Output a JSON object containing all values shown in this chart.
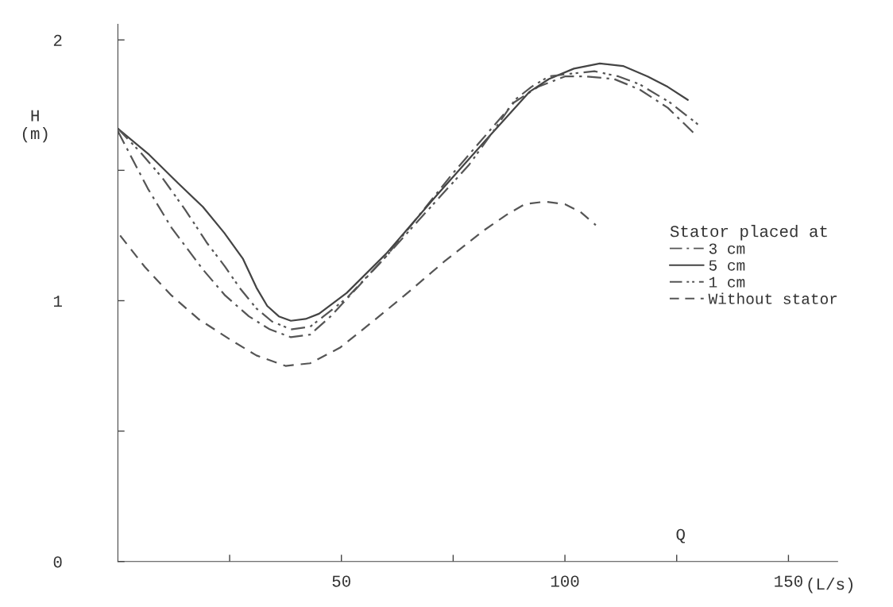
{
  "chart_data": {
    "type": "line",
    "xlabel": "(L/s)",
    "ylabel": "H\n(m)",
    "legend_title": "Stator placed at",
    "annotations": [
      "Q"
    ],
    "xlim": [
      0,
      161
    ],
    "ylim": [
      0,
      2.06
    ],
    "xticks": [
      {
        "value": 25,
        "label": null
      },
      50,
      {
        "value": 75,
        "label": null
      },
      100,
      {
        "value": 125,
        "label": null
      },
      150
    ],
    "yticks": [
      0,
      {
        "value": 0.5,
        "label": null
      },
      1,
      {
        "value": 1.5,
        "label": null
      },
      2
    ],
    "grid": false,
    "legend": "right",
    "marker": "none",
    "series": [
      {
        "name": "3 cm",
        "color": "#555555",
        "line_style": "dashdot",
        "x": [
          0,
          6.7,
          12,
          19,
          24,
          29.3,
          34,
          38.7,
          43,
          47.6,
          60,
          75,
          88.6,
          94,
          100,
          104.8,
          111,
          116.7,
          123,
          129
        ],
        "values": [
          1.65,
          1.43,
          1.28,
          1.12,
          1.02,
          0.94,
          0.89,
          0.86,
          0.87,
          0.94,
          1.17,
          1.49,
          1.76,
          1.82,
          1.86,
          1.86,
          1.85,
          1.81,
          1.74,
          1.64
        ]
      },
      {
        "name": "5 cm",
        "color": "#444444",
        "line_style": "solid",
        "x": [
          0,
          7,
          13.5,
          19,
          23.8,
          28,
          31,
          33.4,
          36,
          38.7,
          42,
          45,
          51.2,
          60,
          71.6,
          82,
          92,
          96.4,
          102,
          107.8,
          113,
          118.5,
          123,
          127.5
        ],
        "values": [
          1.66,
          1.56,
          1.45,
          1.36,
          1.26,
          1.16,
          1.05,
          0.98,
          0.94,
          0.923,
          0.93,
          0.95,
          1.03,
          1.18,
          1.41,
          1.61,
          1.8,
          1.85,
          1.89,
          1.91,
          1.9,
          1.86,
          1.82,
          1.77
        ]
      },
      {
        "name": "1 cm",
        "color": "#555555",
        "line_style": "dashdotdot",
        "x": [
          0,
          5,
          10,
          15,
          20,
          24,
          27.2,
          31,
          34.5,
          38.7,
          43,
          46,
          51.2,
          60,
          70,
          78.5,
          84,
          88.8,
          92.5,
          96.4,
          101,
          106.6,
          112,
          116.7,
          123.5,
          130.2
        ],
        "values": [
          1.66,
          1.57,
          1.47,
          1.35,
          1.22,
          1.13,
          1.05,
          0.97,
          0.92,
          0.89,
          0.9,
          0.94,
          1.01,
          1.17,
          1.36,
          1.52,
          1.65,
          1.77,
          1.82,
          1.86,
          1.87,
          1.88,
          1.86,
          1.83,
          1.76,
          1.67
        ]
      },
      {
        "name": "Without stator",
        "color": "#555555",
        "line_style": "dashed",
        "x": [
          0.5,
          6,
          12,
          18,
          25.2,
          31,
          37.5,
          43,
          49.7,
          57,
          64.8,
          73,
          81.9,
          87,
          91,
          95.5,
          100,
          103.5,
          106.9
        ],
        "values": [
          1.25,
          1.13,
          1.02,
          0.93,
          0.85,
          0.79,
          0.75,
          0.76,
          0.82,
          0.92,
          1.03,
          1.15,
          1.27,
          1.33,
          1.37,
          1.38,
          1.37,
          1.34,
          1.29
        ]
      }
    ]
  }
}
